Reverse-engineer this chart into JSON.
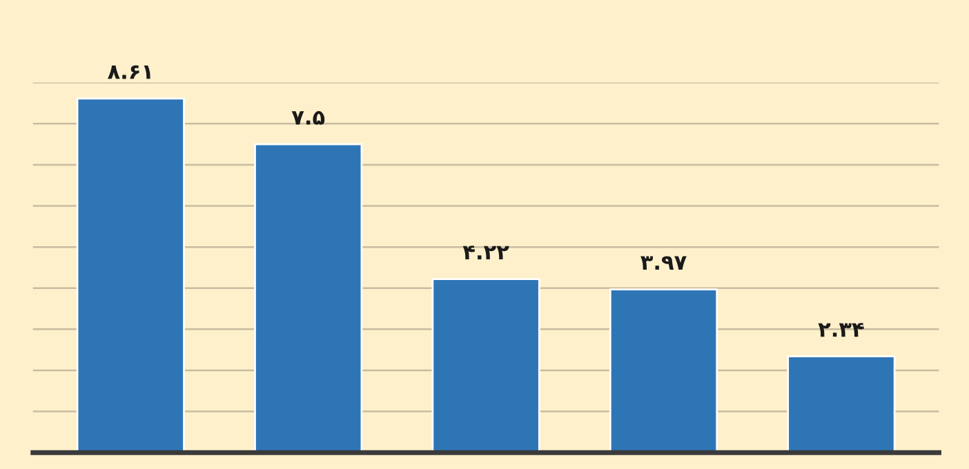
{
  "chart_data": {
    "type": "bar",
    "categories": [
      null,
      null,
      null,
      null,
      null
    ],
    "values": [
      8.61,
      7.5,
      4.22,
      3.97,
      2.34
    ],
    "value_labels": [
      "۸.۶۱",
      "۷.۵",
      "۴.۲۲",
      "۳.۹۷",
      "۲.۳۴"
    ],
    "color": "#2e75b6",
    "ylim": [
      0,
      9
    ],
    "yticks": [
      {
        "value": 1,
        "label": null
      },
      {
        "value": 2,
        "label": null
      },
      {
        "value": 3,
        "label": null
      },
      {
        "value": 4,
        "label": null
      },
      {
        "value": 5,
        "label": null
      },
      {
        "value": 6,
        "label": null
      },
      {
        "value": 7,
        "label": null
      },
      {
        "value": 8,
        "label": null
      },
      {
        "value": 9,
        "label": null
      }
    ],
    "grid": "y"
  }
}
